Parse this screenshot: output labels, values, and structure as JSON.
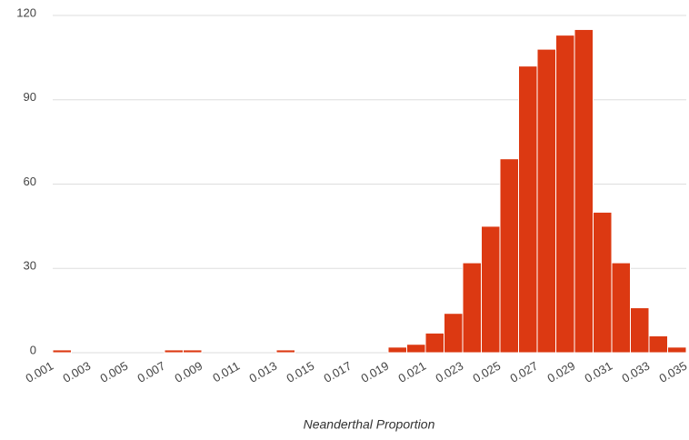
{
  "chart_data": {
    "type": "histogram",
    "xlabel": "Neanderthal Proportion",
    "bins": [
      0.001,
      0.002,
      0.003,
      0.004,
      0.005,
      0.006,
      0.007,
      0.008,
      0.009,
      0.01,
      0.011,
      0.012,
      0.013,
      0.014,
      0.015,
      0.016,
      0.017,
      0.018,
      0.019,
      0.02,
      0.021,
      0.022,
      0.023,
      0.024,
      0.025,
      0.026,
      0.027,
      0.028,
      0.029,
      0.03,
      0.031,
      0.032,
      0.033,
      0.034,
      0.035
    ],
    "counts": [
      1,
      0,
      0,
      0,
      0,
      0,
      1,
      1,
      0,
      0,
      0,
      0,
      1,
      0,
      0,
      0,
      0,
      0,
      2,
      3,
      7,
      14,
      32,
      45,
      69,
      102,
      108,
      113,
      115,
      50,
      32,
      16,
      6,
      2
    ],
    "color": "#dc3912",
    "xlim": [
      0.001,
      0.035
    ],
    "xticks": [
      0.001,
      0.003,
      0.005,
      0.007,
      0.009,
      0.011,
      0.013,
      0.015,
      0.017,
      0.019,
      0.021,
      0.023,
      0.025,
      0.027,
      0.029,
      0.031,
      0.033,
      0.035
    ],
    "ylim": [
      0,
      120
    ],
    "yticks": [
      0,
      30,
      60,
      90,
      120
    ],
    "grid": true
  }
}
